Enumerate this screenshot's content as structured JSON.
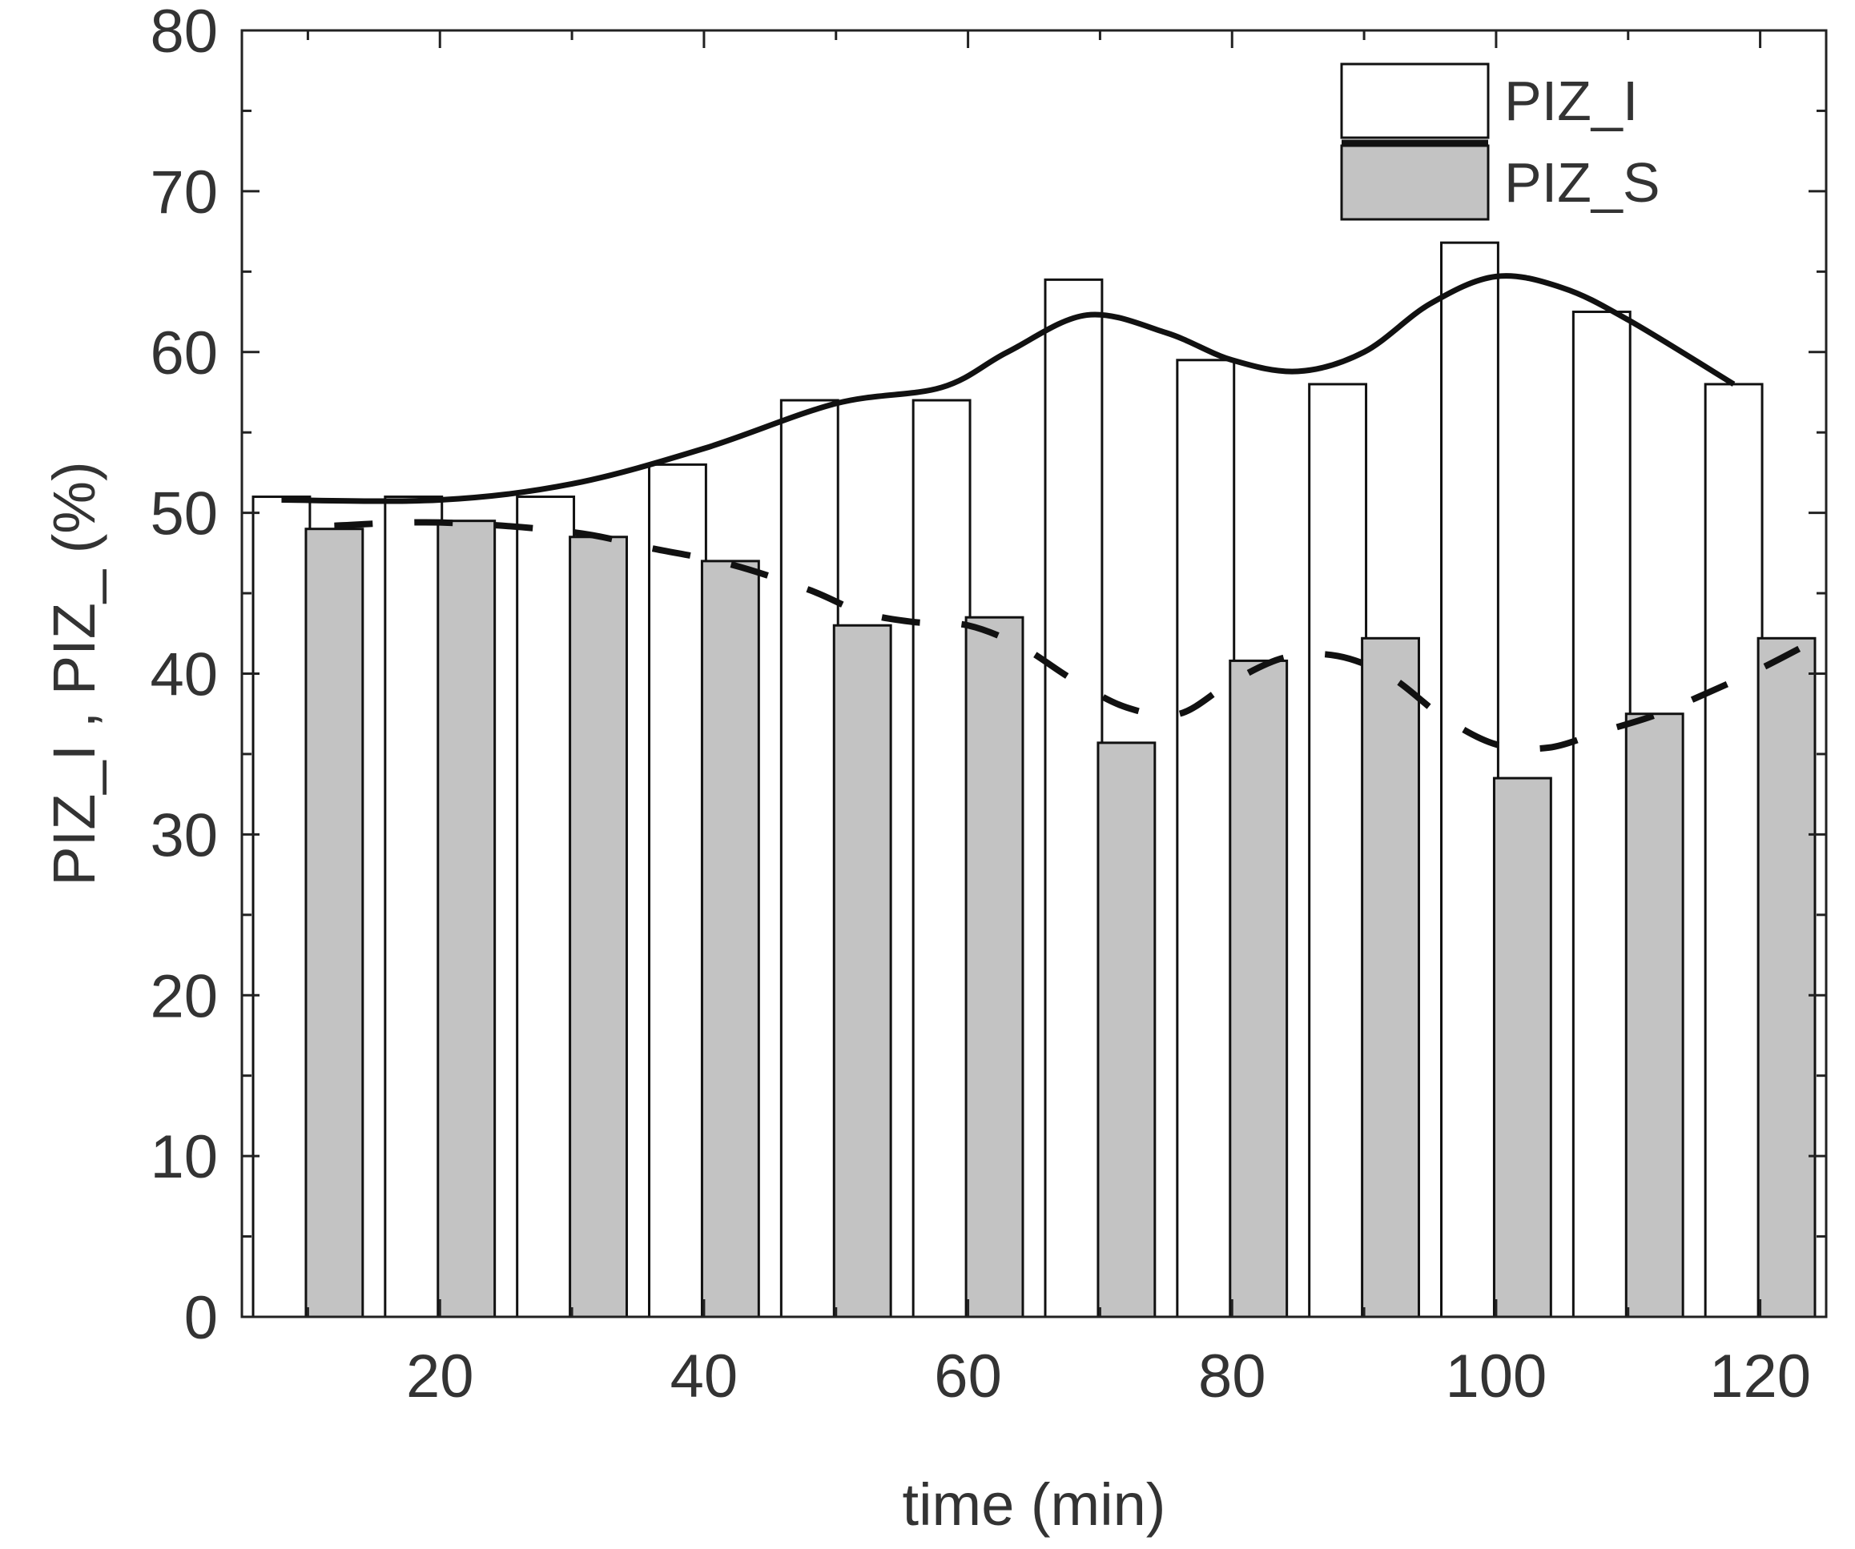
{
  "chart_data": {
    "type": "bar",
    "xlabel": "time (min)",
    "ylabel": "PIZ_I , PIZ_ (%)",
    "xlim": [
      5,
      125
    ],
    "ylim": [
      0,
      80
    ],
    "x_ticks": [
      20,
      40,
      60,
      80,
      100,
      120
    ],
    "y_ticks": [
      0,
      10,
      20,
      30,
      40,
      50,
      60,
      70,
      80
    ],
    "legend_position": "top-right",
    "bar_width": 4.3,
    "series": [
      {
        "name": "PIZ_I",
        "style": "white-bars",
        "x": [
          8,
          18,
          28,
          38,
          48,
          58,
          68,
          78,
          88,
          98,
          108,
          118
        ],
        "values": [
          51,
          51,
          51,
          53,
          57,
          57,
          64.5,
          59.5,
          58,
          66.8,
          62.5,
          58
        ]
      },
      {
        "name": "PIZ_S",
        "style": "gray-bars",
        "x": [
          12,
          22,
          32,
          42,
          52,
          62,
          72,
          82,
          92,
          102,
          112,
          122
        ],
        "values": [
          49,
          49.5,
          48.5,
          47,
          43,
          43.5,
          35.7,
          40.8,
          42.2,
          33.5,
          37.5,
          42.2
        ]
      }
    ],
    "fit_curves": [
      {
        "for_series": "PIZ_I",
        "style": "solid",
        "x": [
          8,
          20,
          30,
          40,
          50,
          58,
          63,
          69,
          75,
          80,
          85,
          90,
          95,
          100,
          105,
          110,
          118
        ],
        "values": [
          50.8,
          50.8,
          51.8,
          54,
          56.8,
          57.8,
          60,
          62.3,
          61.2,
          59.5,
          58.8,
          60,
          63,
          64.7,
          64,
          62,
          58
        ]
      },
      {
        "for_series": "PIZ_S",
        "style": "dashed",
        "x": [
          12,
          20,
          30,
          36,
          42,
          48,
          52,
          56,
          60,
          64,
          68,
          72,
          76,
          80,
          84,
          88,
          92,
          96,
          100,
          104,
          108,
          112,
          116,
          120,
          124
        ],
        "values": [
          49.2,
          49.4,
          48.8,
          47.8,
          46.8,
          45.2,
          43.8,
          43.2,
          43,
          41.7,
          39.6,
          37.9,
          37.5,
          39.5,
          41,
          41.1,
          39.8,
          37.3,
          35.6,
          35.4,
          36.4,
          37.4,
          38.8,
          40.3,
          42
        ]
      }
    ],
    "colors": {
      "frame": "#222222",
      "bar_outline": "#111111",
      "gray_fill": "#c3c3c3",
      "white_fill": "#ffffff",
      "curve": "#111111"
    }
  }
}
